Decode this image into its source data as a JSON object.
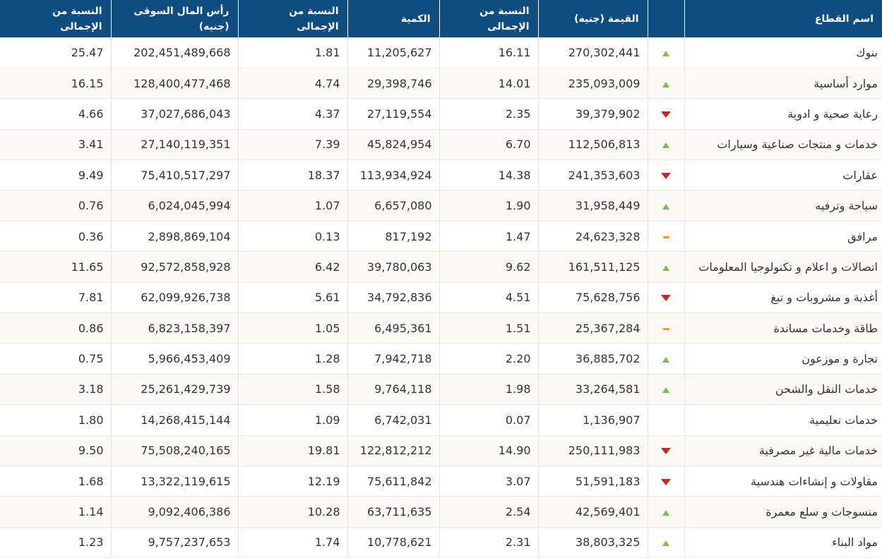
{
  "colors": {
    "header_bg": "#0f4d80",
    "up": "#7bc043",
    "down": "#c62828",
    "flat": "#f39c12"
  },
  "headers": {
    "sector": "اسم القطاع",
    "trend": "",
    "value": "القيمة (جنيه)",
    "value_pct": "النسبة من الإجمالى",
    "quantity": "الكمية",
    "quantity_pct": "النسبة من الإجمالى",
    "market_cap": "رأس المال السوقى (جنيه)",
    "market_cap_pct": "النسبة من الإجمالى"
  },
  "rows": [
    {
      "sector": "بنوك",
      "trend": "up",
      "value": "270,302,441",
      "value_pct": "16.11",
      "quantity": "11,205,627",
      "quantity_pct": "1.81",
      "market_cap": "202,451,489,668",
      "market_cap_pct": "25.47"
    },
    {
      "sector": "موارد أساسية",
      "trend": "up",
      "value": "235,093,009",
      "value_pct": "14.01",
      "quantity": "29,398,746",
      "quantity_pct": "4.74",
      "market_cap": "128,400,477,468",
      "market_cap_pct": "16.15"
    },
    {
      "sector": "رعاية صحية و ادوية",
      "trend": "down",
      "value": "39,379,902",
      "value_pct": "2.35",
      "quantity": "27,119,554",
      "quantity_pct": "4.37",
      "market_cap": "37,027,686,043",
      "market_cap_pct": "4.66"
    },
    {
      "sector": "خدمات و منتجات صناعية وسيارات",
      "trend": "up",
      "value": "112,506,813",
      "value_pct": "6.70",
      "quantity": "45,824,954",
      "quantity_pct": "7.39",
      "market_cap": "27,140,119,351",
      "market_cap_pct": "3.41"
    },
    {
      "sector": "عقارات",
      "trend": "down",
      "value": "241,353,603",
      "value_pct": "14.38",
      "quantity": "113,934,924",
      "quantity_pct": "18.37",
      "market_cap": "75,410,517,297",
      "market_cap_pct": "9.49"
    },
    {
      "sector": "سياحة وترفيه",
      "trend": "up",
      "value": "31,958,449",
      "value_pct": "1.90",
      "quantity": "6,657,080",
      "quantity_pct": "1.07",
      "market_cap": "6,024,045,994",
      "market_cap_pct": "0.76"
    },
    {
      "sector": "مرافق",
      "trend": "flat",
      "value": "24,623,328",
      "value_pct": "1.47",
      "quantity": "817,192",
      "quantity_pct": "0.13",
      "market_cap": "2,898,869,104",
      "market_cap_pct": "0.36"
    },
    {
      "sector": "اتصالات و اعلام و تكنولوجيا المعلومات",
      "trend": "up",
      "value": "161,511,125",
      "value_pct": "9.62",
      "quantity": "39,780,063",
      "quantity_pct": "6.42",
      "market_cap": "92,572,858,928",
      "market_cap_pct": "11.65"
    },
    {
      "sector": "أغذية و مشروبات و تبغ",
      "trend": "down",
      "value": "75,628,756",
      "value_pct": "4.51",
      "quantity": "34,792,836",
      "quantity_pct": "5.61",
      "market_cap": "62,099,926,738",
      "market_cap_pct": "7.81"
    },
    {
      "sector": "طاقة وخدمات مساندة",
      "trend": "flat",
      "value": "25,367,284",
      "value_pct": "1.51",
      "quantity": "6,495,361",
      "quantity_pct": "1.05",
      "market_cap": "6,823,158,397",
      "market_cap_pct": "0.86"
    },
    {
      "sector": "تجارة و موزعون",
      "trend": "up",
      "value": "36,885,702",
      "value_pct": "2.20",
      "quantity": "7,942,718",
      "quantity_pct": "1.28",
      "market_cap": "5,966,453,409",
      "market_cap_pct": "0.75"
    },
    {
      "sector": "خدمات النقل والشحن",
      "trend": "up",
      "value": "33,264,581",
      "value_pct": "1.98",
      "quantity": "9,764,118",
      "quantity_pct": "1.58",
      "market_cap": "25,261,429,739",
      "market_cap_pct": "3.18"
    },
    {
      "sector": "خدمات تعليمية",
      "trend": "none",
      "value": "1,136,907",
      "value_pct": "0.07",
      "quantity": "6,742,031",
      "quantity_pct": "1.09",
      "market_cap": "14,268,415,144",
      "market_cap_pct": "1.80"
    },
    {
      "sector": "خدمات مالية غير مصرفية",
      "trend": "down",
      "value": "250,111,983",
      "value_pct": "14.90",
      "quantity": "122,812,212",
      "quantity_pct": "19.81",
      "market_cap": "75,508,240,165",
      "market_cap_pct": "9.50"
    },
    {
      "sector": "مقاولات و إنشاءات هندسية",
      "trend": "down",
      "value": "51,591,183",
      "value_pct": "3.07",
      "quantity": "75,611,842",
      "quantity_pct": "12.19",
      "market_cap": "13,322,119,615",
      "market_cap_pct": "1.68"
    },
    {
      "sector": "منسوجات و سلع معمرة",
      "trend": "up",
      "value": "42,569,401",
      "value_pct": "2.54",
      "quantity": "63,711,635",
      "quantity_pct": "10.28",
      "market_cap": "9,092,406,386",
      "market_cap_pct": "1.14"
    },
    {
      "sector": "مواد البناء",
      "trend": "up",
      "value": "38,803,325",
      "value_pct": "2.31",
      "quantity": "10,778,621",
      "quantity_pct": "1.74",
      "market_cap": "9,757,237,653",
      "market_cap_pct": "1.23"
    }
  ]
}
